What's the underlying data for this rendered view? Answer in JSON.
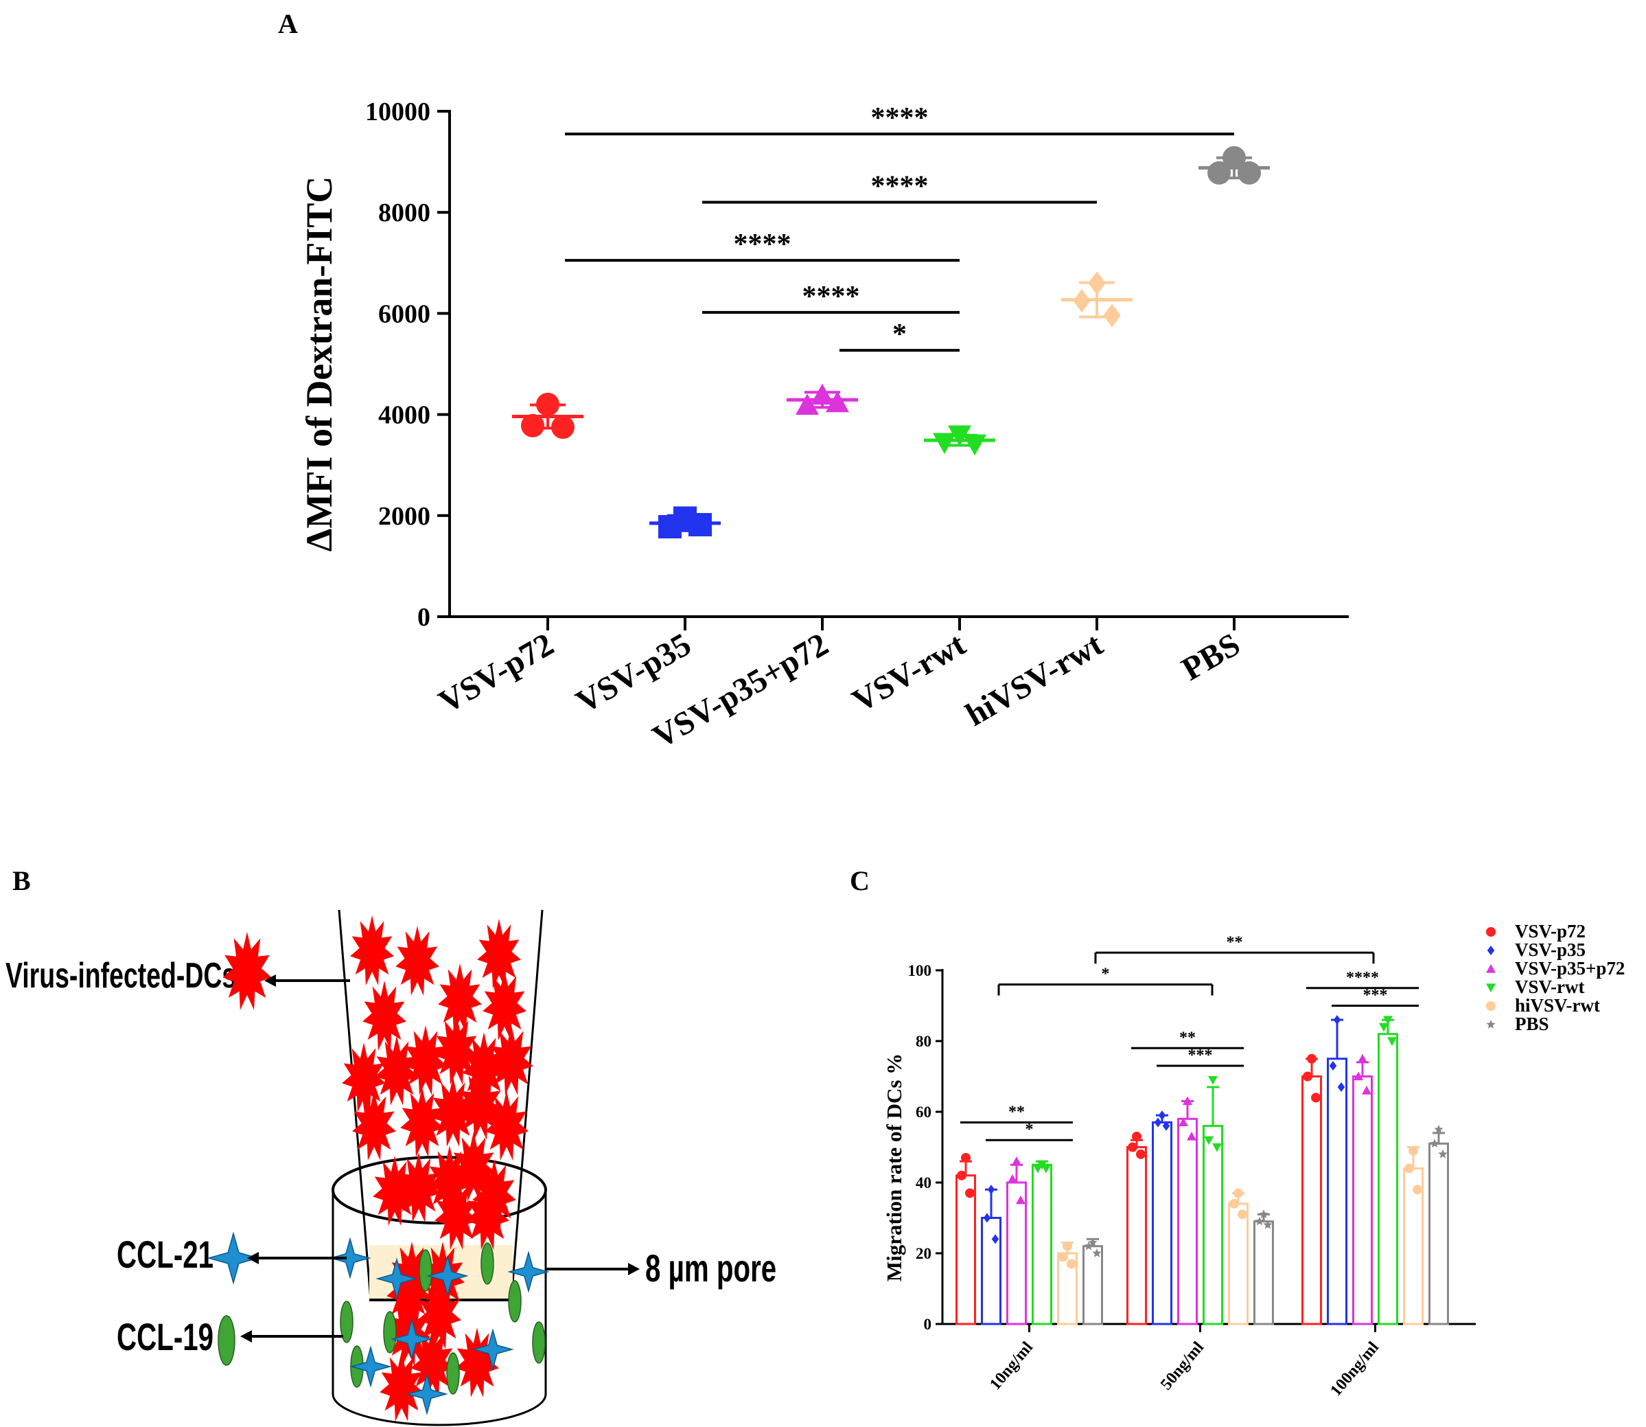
{
  "panel_labels": {
    "a": "A",
    "b": "B",
    "c": "C"
  },
  "diagram": {
    "virus_label": "Virus-infected-DCs",
    "ccl21_label": "CCL-21",
    "ccl19_label": "CCL-19",
    "pore_label": "8 µm pore",
    "colors": {
      "dc": "#ff0000",
      "ccl21": "#1e8fd0",
      "ccl19": "#3fa535",
      "membrane": "#fdf0d0"
    }
  },
  "chart_data": [
    {
      "type": "scatter",
      "title": "",
      "xlabel": "",
      "ylabel": "ΔMFI of Dextran-FITC",
      "ylim": [
        0,
        10000
      ],
      "yticks": [
        0,
        2000,
        4000,
        6000,
        8000,
        10000
      ],
      "categories": [
        "VSV-p72",
        "VSV-p35",
        "VSV-p35+p72",
        "VSV-rwt",
        "hiVSV-rwt",
        "PBS"
      ],
      "series": [
        {
          "category": "VSV-p72",
          "color": "#ff2222",
          "marker": "circle",
          "points": [
            4200,
            3780,
            3750
          ],
          "mean": 3960,
          "sd": 230
        },
        {
          "category": "VSV-p35",
          "color": "#2233ee",
          "marker": "square",
          "points": [
            1950,
            1780,
            1820
          ],
          "mean": 1850,
          "sd": 150
        },
        {
          "category": "VSV-p35+p72",
          "color": "#dd33dd",
          "marker": "triangle-up",
          "points": [
            4380,
            4180,
            4230
          ],
          "mean": 4290,
          "sd": 150
        },
        {
          "category": "VSV-rwt",
          "color": "#22dd22",
          "marker": "triangle-down",
          "points": [
            3600,
            3450,
            3420
          ],
          "mean": 3490,
          "sd": 100
        },
        {
          "category": "hiVSV-rwt",
          "color": "#ffcc99",
          "marker": "diamond",
          "points": [
            6600,
            6250,
            5960
          ],
          "mean": 6270,
          "sd": 340
        },
        {
          "category": "PBS",
          "color": "#888888",
          "marker": "circle",
          "points": [
            9080,
            8780,
            8780
          ],
          "mean": 8880,
          "sd": 200
        }
      ],
      "comparisons": [
        {
          "from": "VSV-p72",
          "to": "PBS",
          "label": "****",
          "y": 9550
        },
        {
          "from": "VSV-p35",
          "to": "hiVSV-rwt",
          "label": "****",
          "y": 8200
        },
        {
          "from": "VSV-p72",
          "to": "VSV-rwt",
          "label": "****",
          "y": 7050
        },
        {
          "from": "VSV-p35",
          "to": "VSV-rwt",
          "label": "****",
          "y": 6020
        },
        {
          "from": "VSV-p35+p72",
          "to": "VSV-rwt",
          "label": "*",
          "y": 5270
        }
      ]
    },
    {
      "type": "bar",
      "title": "",
      "xlabel": "",
      "ylabel": "Migration rate of DCs %",
      "ylim": [
        0,
        100
      ],
      "yticks": [
        0,
        20,
        40,
        60,
        80,
        100
      ],
      "categories": [
        "10ng/ml",
        "50ng/ml",
        "100ng/ml"
      ],
      "legend_position": "top-right",
      "series": [
        {
          "name": "VSV-p72",
          "color": "#ff2222",
          "marker": "circle",
          "values": [
            42,
            50,
            70
          ],
          "sd": [
            4,
            2,
            5
          ],
          "points": [
            [
              47,
              42,
              37
            ],
            [
              53,
              50,
              48
            ],
            [
              75,
              70,
              64
            ]
          ]
        },
        {
          "name": "VSV-p35",
          "color": "#2233ee",
          "marker": "diamond",
          "values": [
            30,
            57,
            75
          ],
          "sd": [
            8,
            2,
            11
          ],
          "points": [
            [
              38,
              30,
              24
            ],
            [
              59,
              57,
              56
            ],
            [
              86,
              73,
              67
            ]
          ]
        },
        {
          "name": "VSV-p35+p72",
          "color": "#dd33dd",
          "marker": "triangle-up",
          "values": [
            40,
            58,
            70
          ],
          "sd": [
            5,
            5,
            4
          ],
          "points": [
            [
              46,
              41,
              35
            ],
            [
              63,
              57,
              53
            ],
            [
              75,
              70,
              66
            ]
          ]
        },
        {
          "name": "VSV-rwt",
          "color": "#22dd22",
          "marker": "triangle-down",
          "values": [
            45,
            56,
            82
          ],
          "sd": [
            1,
            11,
            4
          ],
          "points": [
            [
              45,
              44,
              44
            ],
            [
              69,
              52,
              50
            ],
            [
              86,
              84,
              80
            ]
          ]
        },
        {
          "name": "hiVSV-rwt",
          "color": "#ffcc99",
          "marker": "circle",
          "values": [
            20,
            34,
            44
          ],
          "sd": [
            3,
            3,
            6
          ],
          "points": [
            [
              22,
              19,
              17
            ],
            [
              37,
              34,
              31
            ],
            [
              49,
              44,
              38
            ]
          ]
        },
        {
          "name": "PBS",
          "color": "#888888",
          "marker": "star",
          "values": [
            22,
            29,
            51
          ],
          "sd": [
            2,
            2,
            3
          ],
          "points": [
            [
              23,
              22,
              20
            ],
            [
              31,
              29,
              28
            ],
            [
              55,
              51,
              48
            ]
          ]
        }
      ],
      "comparisons": [
        {
          "group": 0,
          "from": 0,
          "to": 4,
          "label": "**",
          "y": 57
        },
        {
          "group": 0,
          "from": 1,
          "to": 4,
          "label": "*",
          "y": 52
        },
        {
          "group": 1,
          "from": 0,
          "to": 4,
          "label": "**",
          "y": 78
        },
        {
          "group": 1,
          "from": 1,
          "to": 4,
          "label": "***",
          "y": 73
        },
        {
          "group": 2,
          "from": 0,
          "to": 4,
          "label": "****",
          "y": 95
        },
        {
          "group": 2,
          "from": 1,
          "to": 4,
          "label": "***",
          "y": 90
        },
        {
          "between": [
            0,
            1
          ],
          "label": "*",
          "y": 96
        },
        {
          "between": [
            0,
            2
          ],
          "label": "**",
          "y": 105
        }
      ]
    }
  ]
}
